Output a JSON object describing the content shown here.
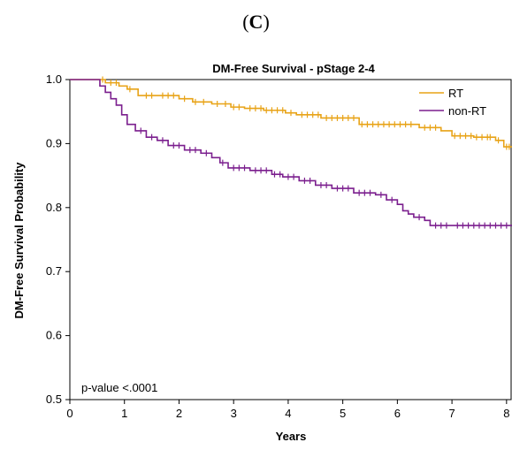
{
  "panel_label": {
    "open": "(",
    "letter": "C",
    "close": ")"
  },
  "chart_data": {
    "type": "line",
    "step": true,
    "title": "DM-Free Survival - pStage 2-4",
    "xlabel": "Years",
    "ylabel": "DM-Free Survival Probability",
    "xlim": [
      0,
      8.1
    ],
    "ylim": [
      0.5,
      1.0
    ],
    "xticks": [
      0,
      1,
      2,
      3,
      4,
      5,
      6,
      7,
      8
    ],
    "xtick_labels": [
      "0",
      "1",
      "2",
      "3",
      "4",
      "5",
      "6",
      "7",
      "8"
    ],
    "yticks": [
      0.5,
      0.6,
      0.7,
      0.8,
      0.9,
      1.0
    ],
    "ytick_labels": [
      "0.5",
      "0.6",
      "0.7",
      "0.8",
      "0.9",
      "1.0"
    ],
    "grid": false,
    "legend_position": "top-right",
    "annotation": "p-value <.0001",
    "series": [
      {
        "name": "RT",
        "color": "#E8A317",
        "x": [
          0,
          0.5,
          0.65,
          0.9,
          1.05,
          1.25,
          1.6,
          2.0,
          2.25,
          2.6,
          2.95,
          3.2,
          3.55,
          3.95,
          4.15,
          4.6,
          5.3,
          5.9,
          6.4,
          6.8,
          7.0,
          7.4,
          7.8,
          7.95,
          8.1
        ],
        "y": [
          1.0,
          1.0,
          0.995,
          0.99,
          0.985,
          0.975,
          0.975,
          0.97,
          0.965,
          0.962,
          0.957,
          0.955,
          0.952,
          0.948,
          0.945,
          0.94,
          0.93,
          0.93,
          0.925,
          0.92,
          0.912,
          0.91,
          0.905,
          0.895,
          0.895
        ],
        "censor_x": [
          0.6,
          0.75,
          0.85,
          1.1,
          1.4,
          1.5,
          1.7,
          1.8,
          1.9,
          2.1,
          2.3,
          2.45,
          2.7,
          2.85,
          3.0,
          3.1,
          3.3,
          3.4,
          3.5,
          3.6,
          3.7,
          3.8,
          3.9,
          4.05,
          4.25,
          4.35,
          4.45,
          4.55,
          4.7,
          4.8,
          4.9,
          5.0,
          5.1,
          5.2,
          5.35,
          5.45,
          5.55,
          5.65,
          5.75,
          5.85,
          5.95,
          6.05,
          6.15,
          6.25,
          6.5,
          6.6,
          6.7,
          7.05,
          7.15,
          7.25,
          7.35,
          7.45,
          7.55,
          7.65,
          7.7,
          7.85,
          8.0,
          8.05
        ]
      },
      {
        "name": "non-RT",
        "color": "#7B1F8E",
        "x": [
          0,
          0.5,
          0.55,
          0.65,
          0.75,
          0.85,
          0.95,
          1.05,
          1.2,
          1.4,
          1.6,
          1.8,
          2.1,
          2.4,
          2.6,
          2.75,
          2.9,
          3.3,
          3.7,
          3.9,
          4.2,
          4.5,
          4.8,
          5.2,
          5.6,
          5.8,
          6.0,
          6.1,
          6.2,
          6.3,
          6.5,
          6.6,
          7.0,
          8.1
        ],
        "y": [
          1.0,
          1.0,
          0.99,
          0.98,
          0.97,
          0.96,
          0.945,
          0.93,
          0.92,
          0.91,
          0.905,
          0.897,
          0.89,
          0.885,
          0.878,
          0.87,
          0.862,
          0.858,
          0.852,
          0.848,
          0.842,
          0.835,
          0.83,
          0.823,
          0.82,
          0.812,
          0.805,
          0.795,
          0.79,
          0.785,
          0.78,
          0.772,
          0.772,
          0.772
        ],
        "censor_x": [
          1.3,
          1.5,
          1.7,
          1.9,
          2.0,
          2.2,
          2.3,
          2.5,
          2.8,
          3.0,
          3.1,
          3.2,
          3.4,
          3.5,
          3.6,
          3.75,
          3.85,
          4.0,
          4.1,
          4.3,
          4.4,
          4.6,
          4.7,
          4.9,
          5.0,
          5.1,
          5.3,
          5.4,
          5.5,
          5.7,
          5.9,
          6.4,
          6.7,
          6.8,
          6.9,
          7.1,
          7.2,
          7.3,
          7.4,
          7.5,
          7.6,
          7.7,
          7.8,
          7.9,
          8.0
        ]
      }
    ]
  }
}
